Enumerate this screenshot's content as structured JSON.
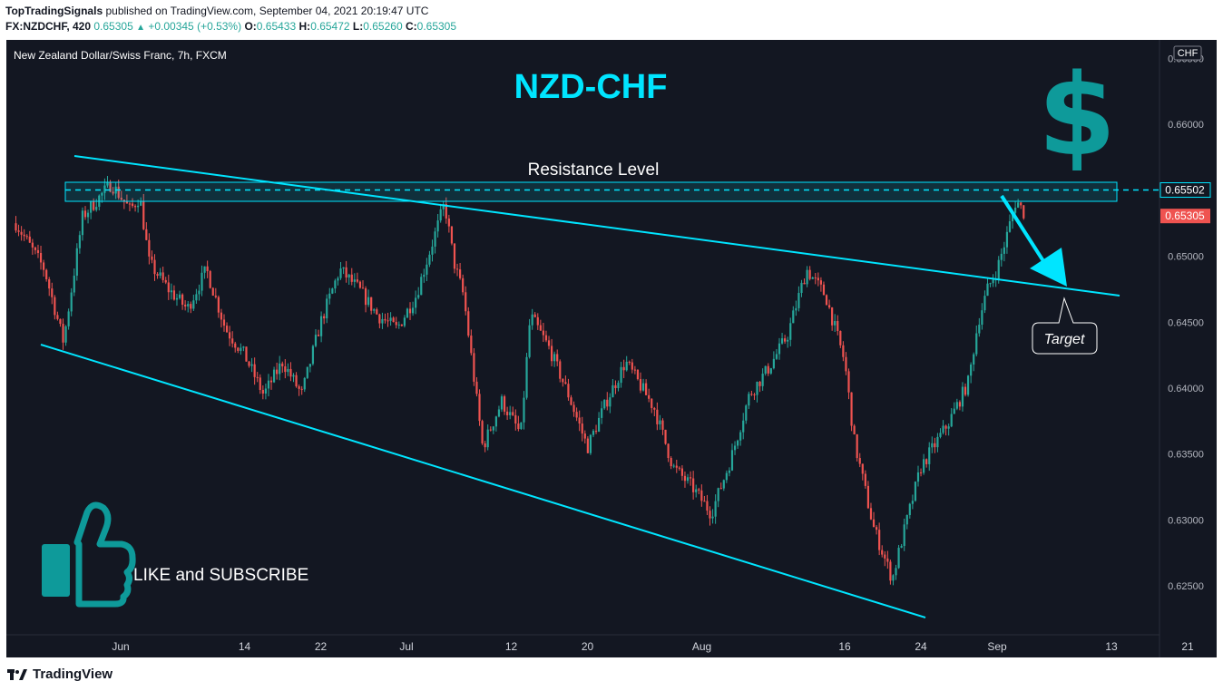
{
  "header": {
    "publisher": "TopTradingSignals",
    "published_line": "published on TradingView.com, September 04, 2021 20:19:47 UTC",
    "symbol": "FX:NZDCHF, 420",
    "last": "0.65305",
    "change": "+0.00345 (+0.53%)",
    "o_label": "O:",
    "o": "0.65433",
    "h_label": "H:",
    "h": "0.65472",
    "l_label": "L:",
    "l": "0.65260",
    "c_label": "C:",
    "c": "0.65305"
  },
  "pane": {
    "instrument": "New Zealand Dollar/Swiss Franc, 7h, FXCM",
    "currency_badge": "CHF"
  },
  "annotations": {
    "title": "NZD-CHF",
    "dollar_sign": "$",
    "resistance": "Resistance Level",
    "target": "Target",
    "like": "LIKE and SUBSCRIBE"
  },
  "price_tags": {
    "resistance": "0.65502",
    "last": "0.65305"
  },
  "colors": {
    "background": "#131722",
    "up": "#26a69a",
    "down": "#ef5350",
    "accent": "#00e5ff",
    "teal_icon": "#0e9a9a",
    "last_tag": "#ef5350"
  },
  "icons": {
    "thumbs": "thumbs-up-icon",
    "logo": "tradingview-logo-icon"
  },
  "footer": {
    "brand": "TradingView"
  },
  "chart_data": {
    "type": "candlestick",
    "title": "NZD-CHF",
    "xlabel": "",
    "ylabel": "",
    "y_ticks": [
      "0.66500",
      "0.66000",
      "0.65500",
      "0.65000",
      "0.64500",
      "0.64000",
      "0.63500",
      "0.63000",
      "0.62500"
    ],
    "ylim": [
      0.6213,
      0.6664
    ],
    "x_ticks": [
      "Jun",
      "14",
      "22",
      "Jul",
      "12",
      "20",
      "Aug",
      "16",
      "24",
      "Sep",
      "13",
      "21"
    ],
    "grid": false,
    "resistance_level": 0.65502,
    "last_price": 0.65305,
    "close_path": [
      [
        "2021-05-21",
        0.6525
      ],
      [
        "2021-05-24",
        0.649
      ],
      [
        "2021-05-26",
        0.6435
      ],
      [
        "2021-05-28",
        0.653
      ],
      [
        "2021-05-31",
        0.6555
      ],
      [
        "2021-06-02",
        0.6535
      ],
      [
        "2021-06-03",
        0.6545
      ],
      [
        "2021-06-04",
        0.6495
      ],
      [
        "2021-06-06",
        0.6475
      ],
      [
        "2021-06-08",
        0.646
      ],
      [
        "2021-06-10",
        0.649
      ],
      [
        "2021-06-12",
        0.6445
      ],
      [
        "2021-06-14",
        0.6425
      ],
      [
        "2021-06-16",
        0.6395
      ],
      [
        "2021-06-18",
        0.642
      ],
      [
        "2021-06-20",
        0.6395
      ],
      [
        "2021-06-22",
        0.645
      ],
      [
        "2021-06-24",
        0.649
      ],
      [
        "2021-06-26",
        0.6475
      ],
      [
        "2021-06-28",
        0.6455
      ],
      [
        "2021-06-30",
        0.6445
      ],
      [
        "2021-07-02",
        0.647
      ],
      [
        "2021-07-05",
        0.654
      ],
      [
        "2021-07-06",
        0.6495
      ],
      [
        "2021-07-07",
        0.647
      ],
      [
        "2021-07-09",
        0.6355
      ],
      [
        "2021-07-11",
        0.639
      ],
      [
        "2021-07-13",
        0.6365
      ],
      [
        "2021-07-14",
        0.6455
      ],
      [
        "2021-07-16",
        0.643
      ],
      [
        "2021-07-18",
        0.6395
      ],
      [
        "2021-07-20",
        0.6355
      ],
      [
        "2021-07-22",
        0.639
      ],
      [
        "2021-07-24",
        0.642
      ],
      [
        "2021-07-27",
        0.6385
      ],
      [
        "2021-07-29",
        0.634
      ],
      [
        "2021-07-31",
        0.6325
      ],
      [
        "2021-08-02",
        0.6305
      ],
      [
        "2021-08-04",
        0.6345
      ],
      [
        "2021-08-06",
        0.6395
      ],
      [
        "2021-08-08",
        0.6415
      ],
      [
        "2021-08-10",
        0.644
      ],
      [
        "2021-08-12",
        0.649
      ],
      [
        "2021-08-14",
        0.647
      ],
      [
        "2021-08-16",
        0.642
      ],
      [
        "2021-08-17",
        0.636
      ],
      [
        "2021-08-19",
        0.6295
      ],
      [
        "2021-08-20",
        0.6275
      ],
      [
        "2021-08-21",
        0.6255
      ],
      [
        "2021-08-22",
        0.6285
      ],
      [
        "2021-08-24",
        0.634
      ],
      [
        "2021-08-27",
        0.6375
      ],
      [
        "2021-08-29",
        0.6405
      ],
      [
        "2021-08-30",
        0.645
      ],
      [
        "2021-08-31",
        0.6475
      ],
      [
        "2021-09-01",
        0.649
      ],
      [
        "2021-09-02",
        0.6515
      ],
      [
        "2021-09-03",
        0.6543
      ],
      [
        "2021-09-04",
        0.65305
      ]
    ]
  }
}
